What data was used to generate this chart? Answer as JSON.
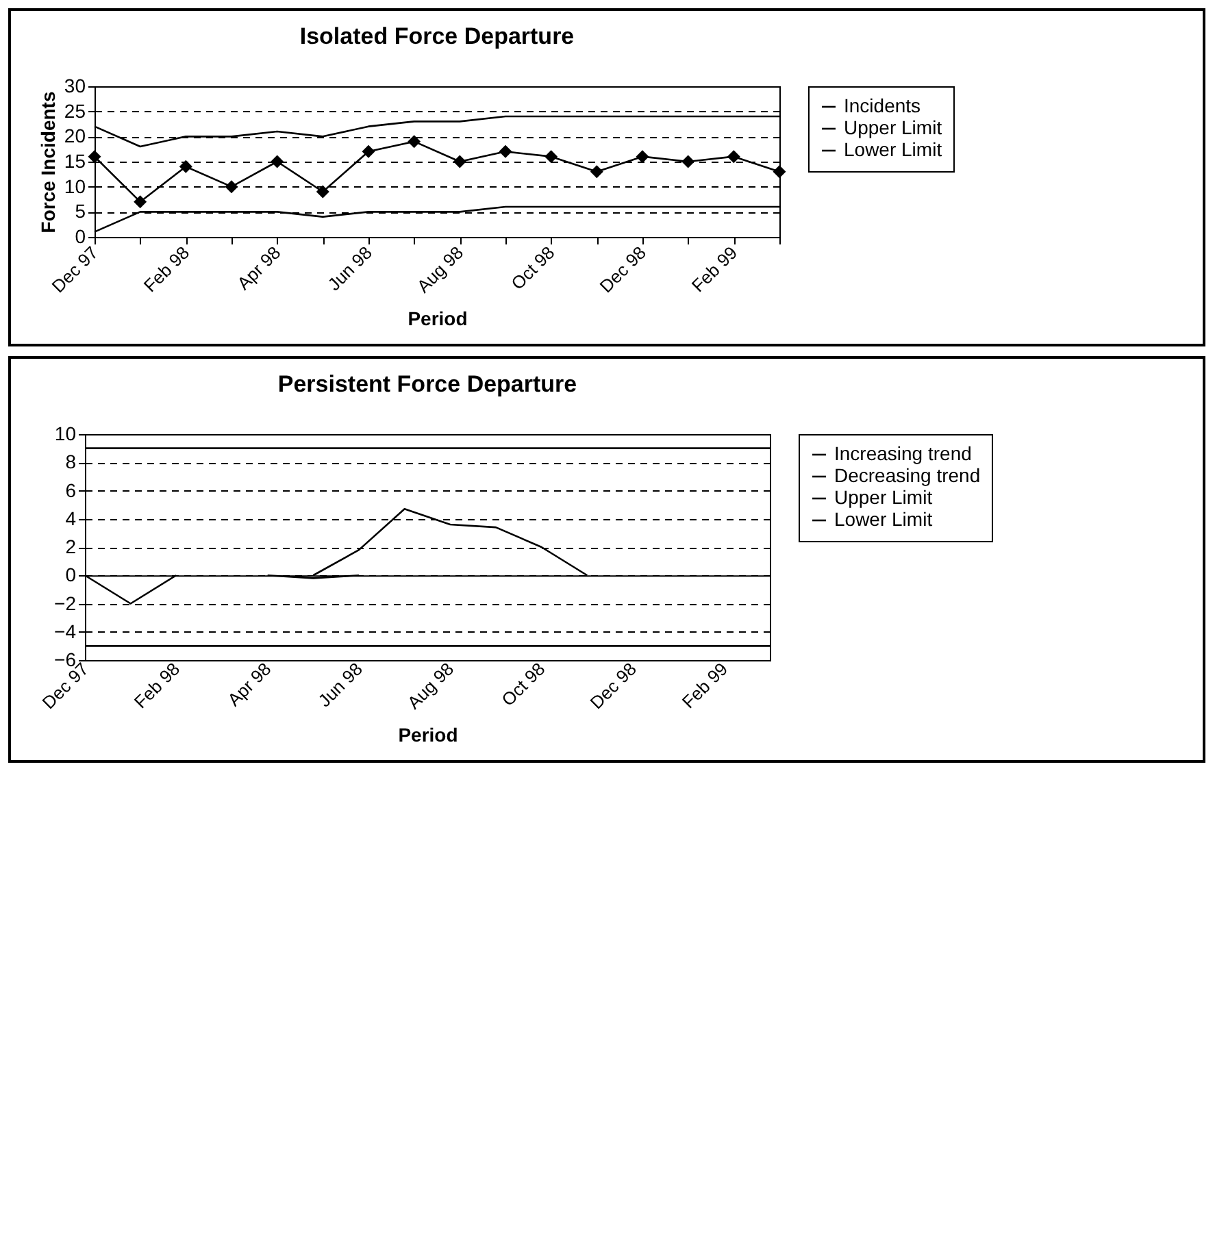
{
  "chart_data": [
    {
      "type": "line",
      "title": "Isolated Force Departure",
      "xlabel": "Period",
      "ylabel": "Force Incidents",
      "categories": [
        "Dec 97",
        null,
        "Feb 98",
        null,
        "Apr 98",
        null,
        "Jun 98",
        null,
        "Aug 98",
        null,
        "Oct 98",
        null,
        "Dec 98",
        null,
        "Feb 99",
        null
      ],
      "series": [
        {
          "name": "Incidents",
          "color": "#000000",
          "marker": "diamond",
          "values": [
            16,
            7,
            14,
            10,
            15,
            9,
            17,
            19,
            15,
            17,
            16,
            13,
            16,
            15,
            16,
            13
          ]
        },
        {
          "name": "Upper Limit",
          "color": "#000000",
          "values": [
            22,
            18,
            20,
            20,
            21,
            20,
            22,
            23,
            23,
            24,
            24,
            24,
            24,
            24,
            24,
            24
          ]
        },
        {
          "name": "Lower Limit",
          "color": "#000000",
          "values": [
            1,
            5,
            5,
            5,
            5,
            4,
            5,
            5,
            5,
            6,
            6,
            6,
            6,
            6,
            6,
            6
          ]
        }
      ],
      "ylim": [
        0,
        30
      ],
      "yticks": [
        0,
        5,
        10,
        15,
        20,
        25,
        30
      ],
      "grid": "y",
      "legend": "right"
    },
    {
      "type": "line",
      "title": "Persistent Force Departure",
      "xlabel": "Period",
      "categories": [
        "Dec 97",
        null,
        "Feb 98",
        null,
        "Apr 98",
        null,
        "Jun 98",
        null,
        "Aug 98",
        null,
        "Oct 98",
        null,
        "Dec 98",
        null,
        "Feb 99",
        null
      ],
      "series": [
        {
          "name": "Increasing trend",
          "color": "#000000",
          "values": [
            null,
            null,
            null,
            null,
            null,
            0,
            1.8,
            4.7,
            3.6,
            3.4,
            2,
            0,
            null,
            null,
            null,
            null
          ]
        },
        {
          "name": "Decreasing trend",
          "color": "#000000",
          "values": [
            0,
            -2,
            0,
            null,
            0,
            -0.2,
            0,
            null,
            null,
            null,
            null,
            null,
            null,
            null,
            null,
            null
          ]
        },
        {
          "name": "Upper Limit",
          "color": "#000000",
          "values": [
            9,
            9,
            9,
            9,
            9,
            9,
            9,
            9,
            9,
            9,
            9,
            9,
            9,
            9,
            9,
            9
          ]
        },
        {
          "name": "Lower Limit",
          "color": "#000000",
          "values": [
            -5,
            -5,
            -5,
            -5,
            -5,
            -5,
            -5,
            -5,
            -5,
            -5,
            -5,
            -5,
            -5,
            -5,
            -5,
            -5
          ]
        }
      ],
      "ylim": [
        -6,
        10
      ],
      "yticks": [
        -6,
        -4,
        -2,
        0,
        2,
        4,
        6,
        8,
        10
      ],
      "grid": "y",
      "legend": "right"
    }
  ]
}
